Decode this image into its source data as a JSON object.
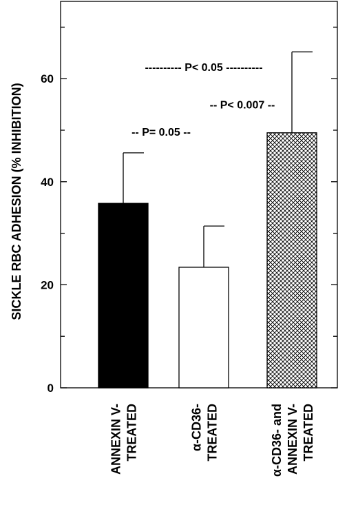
{
  "chart_data": {
    "type": "bar",
    "title": "",
    "xlabel": "",
    "ylabel": "SICKLE RBC ADHESION (% INHIBITION)",
    "ylim": [
      0,
      75
    ],
    "yticks": [
      0,
      20,
      40,
      60
    ],
    "grid": false,
    "categories": [
      [
        "ANNEXIN V-",
        "TREATED"
      ],
      [
        "α-CD36-",
        "TREATED"
      ],
      [
        "α-CD36- and",
        "ANNEXIN V-",
        "TREATED"
      ]
    ],
    "values": [
      35.8,
      23.4,
      49.5
    ],
    "error_upper": [
      45.6,
      31.4,
      65.2
    ],
    "fills": [
      "solid-black",
      "white",
      "crosshatch"
    ],
    "colors": {
      "bar": "#000000",
      "background": "#ffffff"
    },
    "annotations": [
      {
        "text": "---------- P< 0.05 ----------",
        "y": 61.5
      },
      {
        "text": "-- P< 0.007 --",
        "y": 54.2
      },
      {
        "text": "-- P= 0.05 --",
        "y": 48.9
      }
    ]
  }
}
